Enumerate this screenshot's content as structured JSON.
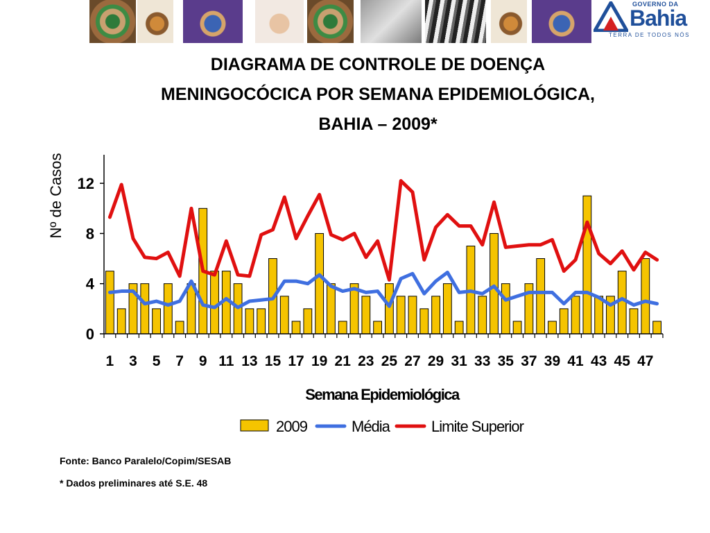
{
  "header": {
    "images": [
      "hands-circle-image",
      "hands-holding-image",
      "hands-globe-image",
      "hands-clasp-image",
      "hands-circle-image",
      "handshake-image",
      "hands-stack-image",
      "hands-holding-image",
      "hands-globe-image"
    ],
    "logo": {
      "small": "GOVERNO DA",
      "big": "Bahia",
      "tagline": "TERRA DE TODOS NÓS"
    }
  },
  "title_lines": [
    "DIAGRAMA DE CONTROLE DE DOENÇA",
    "MENINGOCÓCICA POR SEMANA EPIDEMIOLÓGICA,",
    "BAHIA – 2009*"
  ],
  "chart_data": {
    "type": "bar",
    "xlabel": "Semana Epidemiológica",
    "ylabel": "Nº de Casos",
    "ylim": [
      0,
      14
    ],
    "yticks": [
      0,
      4,
      8,
      12
    ],
    "xtick_labels": [
      "1",
      "3",
      "5",
      "7",
      "9",
      "11",
      "13",
      "15",
      "17",
      "19",
      "21",
      "23",
      "25",
      "27",
      "29",
      "31",
      "33",
      "35",
      "37",
      "39",
      "41",
      "43",
      "45",
      "47"
    ],
    "grid": false,
    "legend_position": "bottom",
    "categories": [
      1,
      2,
      3,
      4,
      5,
      6,
      7,
      8,
      9,
      10,
      11,
      12,
      13,
      14,
      15,
      16,
      17,
      18,
      19,
      20,
      21,
      22,
      23,
      24,
      25,
      26,
      27,
      28,
      29,
      30,
      31,
      32,
      33,
      34,
      35,
      36,
      37,
      38,
      39,
      40,
      41,
      42,
      43,
      44,
      45,
      46,
      47,
      48
    ],
    "series": [
      {
        "name": "2009",
        "kind": "bar",
        "color": "#f5c400",
        "values": [
          5,
          2,
          4,
          4,
          2,
          4,
          1,
          4,
          10,
          5,
          5,
          4,
          2,
          2,
          6,
          3,
          1,
          2,
          8,
          4,
          1,
          4,
          3,
          1,
          4,
          3,
          3,
          2,
          3,
          4,
          1,
          7,
          3,
          8,
          4,
          1,
          4,
          6,
          1,
          2,
          3,
          11,
          3,
          3,
          5,
          2,
          6,
          1
        ]
      },
      {
        "name": "Média",
        "kind": "line",
        "color": "#3f6fe0",
        "values": [
          3.3,
          3.4,
          3.4,
          2.4,
          2.6,
          2.3,
          2.6,
          4.2,
          2.3,
          2.1,
          2.8,
          2.1,
          2.6,
          2.7,
          2.8,
          4.2,
          4.2,
          4.0,
          4.7,
          3.8,
          3.4,
          3.6,
          3.3,
          3.4,
          2.2,
          4.4,
          4.8,
          3.2,
          4.2,
          4.9,
          3.3,
          3.4,
          3.2,
          3.8,
          2.7,
          3.0,
          3.3,
          3.3,
          3.3,
          2.4,
          3.3,
          3.3,
          2.9,
          2.3,
          2.8,
          2.3,
          2.6,
          2.4
        ]
      },
      {
        "name": "Limite Superior",
        "kind": "line",
        "color": "#e01010",
        "values": [
          9.3,
          11.9,
          7.6,
          6.1,
          6.0,
          6.5,
          4.6,
          10.0,
          5.0,
          4.7,
          7.4,
          4.7,
          4.6,
          7.9,
          8.3,
          10.9,
          7.6,
          9.4,
          11.1,
          7.9,
          7.5,
          8.0,
          6.1,
          7.4,
          4.3,
          12.2,
          11.3,
          5.9,
          8.5,
          9.5,
          8.6,
          8.6,
          7.1,
          10.5,
          6.9,
          7.0,
          7.1,
          7.1,
          7.5,
          5.0,
          5.9,
          8.9,
          6.4,
          5.6,
          6.6,
          5.1,
          6.5,
          5.9
        ]
      }
    ]
  },
  "footer": {
    "source": "Fonte: Banco Paralelo/Copim/SESAB",
    "note": "* Dados preliminares até S.E. 48"
  }
}
